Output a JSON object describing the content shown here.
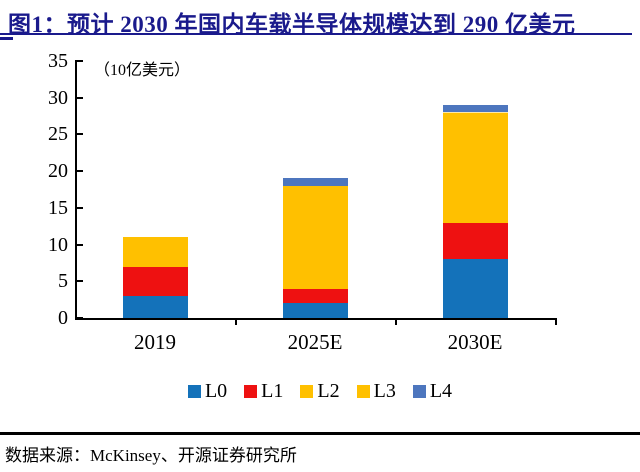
{
  "header": {
    "title": "图1：预计 2030 年国内车载半导体规模达到 290 亿美元"
  },
  "footer": {
    "source": "数据来源：McKinsey、开源证券研究所"
  },
  "colors": {
    "title_navy": "#1a1a8c",
    "axis": "#000000"
  },
  "chart_data": {
    "type": "bar",
    "stacked": true,
    "title": "预计 2030 年国内车载半导体规模达到 290 亿美元",
    "unit_label": "（10亿美元）",
    "categories": [
      "2019",
      "2025E",
      "2030E"
    ],
    "series": [
      {
        "name": "L0",
        "color": "#1472ba",
        "values": [
          3,
          2,
          8
        ]
      },
      {
        "name": "L1",
        "color": "#ee1111",
        "values": [
          4,
          2,
          5
        ]
      },
      {
        "name": "L2",
        "color": "#ffc000",
        "values": [
          4,
          14,
          13
        ]
      },
      {
        "name": "L3",
        "color": "#ffc000",
        "values": [
          0,
          0,
          2
        ]
      },
      {
        "name": "L4",
        "color": "#4d76be",
        "values": [
          0,
          1,
          1
        ]
      }
    ],
    "totals": [
      11,
      19,
      29
    ],
    "ylim": [
      0,
      35
    ],
    "yticks": [
      0,
      5,
      10,
      15,
      20,
      25,
      30,
      35
    ],
    "xlabel": "",
    "ylabel": "10亿美元",
    "grid": false,
    "legend_position": "bottom"
  }
}
